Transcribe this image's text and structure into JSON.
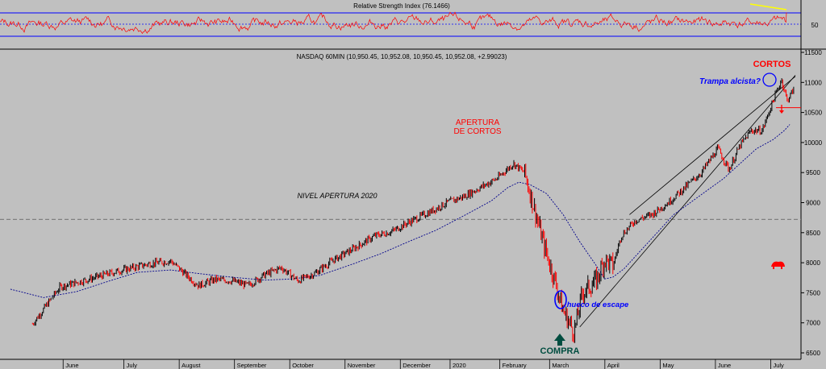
{
  "chart_data": [
    {
      "type": "line",
      "title": "Relative Strength Index (76.1466)",
      "indicator": "RSI",
      "last_value": 76.1466,
      "levels": [
        70,
        50,
        30
      ],
      "y_ticks": [
        "50"
      ],
      "colors": {
        "rsi": "#ff0000",
        "levels": "#0000ff",
        "trendline": "#ffff00"
      }
    },
    {
      "type": "line",
      "title": "NASDAQ 60MIN (10,950.45, 10,952.08, 10,950.45, 10,952.08, +2.99023)",
      "ylim": [
        6500,
        11500
      ],
      "y_ticks": [
        "11500",
        "11000",
        "10500",
        "10000",
        "9500",
        "9000",
        "8500",
        "8000",
        "7500",
        "7000",
        "6500"
      ],
      "x_labels": [
        "June",
        "July",
        "August",
        "September",
        "October",
        "November",
        "December",
        "2020",
        "February",
        "March",
        "April",
        "May",
        "June",
        "July"
      ],
      "x_label_pos": [
        1.2,
        2.3,
        3.3,
        4.3,
        5.3,
        6.3,
        7.3,
        8.2,
        9.1,
        10.0,
        11.0,
        12.0,
        13.0,
        14.0
      ],
      "price_path": [
        [
          0.5,
          6980
        ],
        [
          1.0,
          7600
        ],
        [
          1.5,
          7720
        ],
        [
          2.0,
          7850
        ],
        [
          2.6,
          7980
        ],
        [
          3.0,
          8030
        ],
        [
          3.3,
          7780
        ],
        [
          3.5,
          7620
        ],
        [
          3.8,
          7720
        ],
        [
          4.1,
          7700
        ],
        [
          4.4,
          7620
        ],
        [
          4.7,
          7800
        ],
        [
          5.0,
          7920
        ],
        [
          5.3,
          7700
        ],
        [
          5.6,
          7820
        ],
        [
          5.9,
          8020
        ],
        [
          6.3,
          8230
        ],
        [
          6.7,
          8450
        ],
        [
          7.0,
          8520
        ],
        [
          7.3,
          8670
        ],
        [
          7.7,
          8850
        ],
        [
          8.0,
          9000
        ],
        [
          8.3,
          9100
        ],
        [
          8.6,
          9250
        ],
        [
          8.9,
          9400
        ],
        [
          9.2,
          9650
        ],
        [
          9.4,
          9500
        ],
        [
          9.55,
          9000
        ],
        [
          9.75,
          8300
        ],
        [
          9.95,
          7700
        ],
        [
          10.1,
          7200
        ],
        [
          10.3,
          6850
        ],
        [
          10.45,
          7500
        ],
        [
          10.7,
          7700
        ],
        [
          10.85,
          8050
        ],
        [
          11.0,
          7950
        ],
        [
          11.15,
          8450
        ],
        [
          11.4,
          8700
        ],
        [
          11.7,
          8800
        ],
        [
          12.0,
          9000
        ],
        [
          12.3,
          9250
        ],
        [
          12.6,
          9500
        ],
        [
          12.9,
          9900
        ],
        [
          13.1,
          9550
        ],
        [
          13.3,
          9950
        ],
        [
          13.5,
          10200
        ],
        [
          13.7,
          10200
        ],
        [
          13.9,
          10700
        ],
        [
          14.05,
          11050
        ],
        [
          14.15,
          10700
        ],
        [
          14.28,
          10900
        ]
      ],
      "ma_path": [
        [
          0.1,
          7560
        ],
        [
          0.7,
          7420
        ],
        [
          1.3,
          7520
        ],
        [
          1.9,
          7700
        ],
        [
          2.4,
          7840
        ],
        [
          3.0,
          7880
        ],
        [
          3.5,
          7820
        ],
        [
          4.1,
          7760
        ],
        [
          4.7,
          7710
        ],
        [
          5.2,
          7730
        ],
        [
          5.7,
          7790
        ],
        [
          6.3,
          7980
        ],
        [
          6.8,
          8150
        ],
        [
          7.3,
          8350
        ],
        [
          7.8,
          8540
        ],
        [
          8.3,
          8780
        ],
        [
          8.8,
          9030
        ],
        [
          9.1,
          9250
        ],
        [
          9.3,
          9340
        ],
        [
          9.5,
          9300
        ],
        [
          9.8,
          9150
        ],
        [
          10.1,
          8800
        ],
        [
          10.4,
          8350
        ],
        [
          10.7,
          7950
        ],
        [
          10.85,
          7730
        ],
        [
          11.0,
          7760
        ],
        [
          11.2,
          7900
        ],
        [
          11.5,
          8200
        ],
        [
          11.8,
          8500
        ],
        [
          12.1,
          8800
        ],
        [
          12.4,
          9000
        ],
        [
          12.7,
          9200
        ],
        [
          13.0,
          9400
        ],
        [
          13.3,
          9650
        ],
        [
          13.6,
          9900
        ],
        [
          13.9,
          10050
        ],
        [
          14.1,
          10200
        ],
        [
          14.2,
          10300
        ]
      ],
      "horizontal_levels": [
        {
          "value": 8720,
          "label": "NIVEL APERTURA 2020"
        },
        {
          "value": 10580,
          "label": ""
        }
      ],
      "trendlines": [
        {
          "from": [
            10.4,
            6930
          ],
          "to": [
            14.3,
            11120
          ]
        },
        {
          "from": [
            11.3,
            8800
          ],
          "to": [
            14.3,
            11100
          ]
        }
      ],
      "annotations": {
        "apertura_line1": "APERTURA",
        "apertura_line2": "DE CORTOS",
        "nivel": "NIVEL APERTURA 2020",
        "cortos": "CORTOS",
        "trampa": "Trampa alcista?",
        "hueco": "hueco de escape",
        "compra": "COMPRA"
      },
      "colors": {
        "up_bar": "#000000",
        "down_bar": "#ff0000",
        "moving_average": "#00008b",
        "level": "#808080",
        "compra_arrow": "#004d40"
      }
    }
  ]
}
